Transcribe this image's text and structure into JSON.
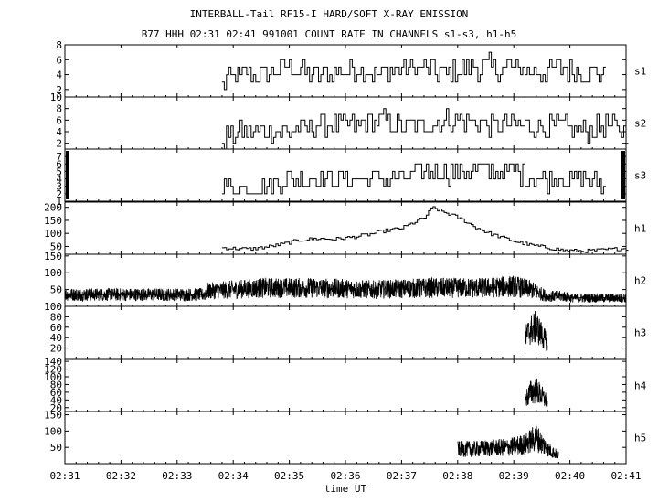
{
  "chart_data": {
    "type": "line",
    "title": "INTERBALL-Tail RF15-I HARD/SOFT X-RAY EMISSION",
    "subtitle": "B77 HHH 02:31 02:41 991001  COUNT RATE IN CHANNELS s1-s3, h1-h5",
    "xlabel": "time UT",
    "x_ticks": [
      "02:31",
      "02:32",
      "02:33",
      "02:34",
      "02:35",
      "02:36",
      "02:37",
      "02:38",
      "02:39",
      "02:40",
      "02:41"
    ],
    "xlim_minutes": [
      0,
      10
    ],
    "panels": [
      {
        "name": "s1",
        "ylim": [
          1,
          8
        ],
        "yticks": [
          2,
          4,
          6,
          8
        ],
        "style": "step",
        "series": [
          {
            "x": [
              2.8,
              3.2,
              3.6,
              4.0,
              4.4,
              4.8,
              5.2,
              5.6,
              6.0,
              6.4,
              6.8,
              7.2,
              7.6,
              8.0,
              8.4,
              8.8,
              9.2,
              9.6
            ],
            "values": [
              3,
              4,
              4,
              5,
              4,
              4,
              5,
              4,
              5,
              5,
              4,
              5,
              5,
              5,
              4,
              5,
              4,
              4
            ]
          }
        ]
      },
      {
        "name": "s2",
        "ylim": [
          1,
          10
        ],
        "yticks": [
          2,
          4,
          6,
          8,
          10
        ],
        "style": "step",
        "series": [
          {
            "x": [
              2.8,
              3.2,
              3.6,
              4.0,
              4.4,
              4.8,
              5.2,
              5.6,
              6.0,
              6.4,
              6.8,
              7.2,
              7.6,
              8.0,
              8.4,
              8.8,
              9.2,
              9.6,
              10.0
            ],
            "values": [
              3,
              4,
              4,
              4,
              5,
              5,
              5,
              6,
              5,
              5,
              6,
              6,
              5,
              5,
              5,
              5,
              4,
              5,
              4
            ]
          }
        ]
      },
      {
        "name": "s3",
        "ylim": [
          1,
          8
        ],
        "yticks": [
          1,
          2,
          3,
          4,
          5,
          6,
          7
        ],
        "style": "step",
        "series": [
          {
            "x": [
              2.8,
              3.2,
              3.6,
              4.0,
              4.4,
              4.8,
              5.2,
              5.6,
              6.0,
              6.4,
              6.8,
              7.2,
              7.6,
              8.0,
              8.4,
              8.8,
              9.2,
              9.6
            ],
            "values": [
              3,
              3,
              3,
              4,
              4,
              4,
              4,
              4,
              4,
              5,
              5,
              5,
              5,
              5,
              4,
              4,
              4,
              3
            ]
          }
        ]
      },
      {
        "name": "h1",
        "ylim": [
          20,
          220
        ],
        "yticks": [
          50,
          100,
          150,
          200
        ],
        "style": "step",
        "series": [
          {
            "x": [
              2.8,
              3.0,
              3.3,
              3.6,
              3.9,
              4.2,
              4.5,
              4.8,
              5.1,
              5.4,
              5.7,
              6.0,
              6.2,
              6.4,
              6.55,
              6.7,
              6.9,
              7.1,
              7.3,
              7.5,
              7.7,
              8.0,
              8.3,
              8.6,
              8.9,
              9.2,
              9.5,
              9.8,
              10.0
            ],
            "values": [
              45,
              42,
              40,
              48,
              60,
              75,
              80,
              78,
              85,
              95,
              110,
              120,
              140,
              160,
              200,
              185,
              170,
              150,
              125,
              105,
              90,
              70,
              55,
              45,
              35,
              32,
              35,
              40,
              42
            ]
          }
        ]
      },
      {
        "name": "h2",
        "ylim": [
          0,
          155
        ],
        "yticks": [
          50,
          100,
          150
        ],
        "style": "noise",
        "baseline": 35,
        "series": [
          {
            "x": [
              0.0,
              2.5,
              2.5,
              3.5,
              4.5,
              5.5,
              6.5,
              7.5,
              8.0,
              8.3,
              8.6,
              8.9,
              9.0,
              10.0
            ],
            "values": [
              35,
              35,
              45,
              55,
              55,
              50,
              55,
              55,
              60,
              50,
              30,
              30,
              25,
              25
            ]
          }
        ]
      },
      {
        "name": "h3",
        "ylim": [
          0,
          100
        ],
        "yticks": [
          20,
          40,
          60,
          80,
          100
        ],
        "style": "noise",
        "series": [
          {
            "x": [
              8.2,
              8.3,
              8.4,
              8.5,
              8.6
            ],
            "values": [
              40,
              55,
              60,
              45,
              30
            ]
          }
        ]
      },
      {
        "name": "h4",
        "ylim": [
          10,
          145
        ],
        "yticks": [
          20,
          40,
          60,
          80,
          100,
          120,
          140
        ],
        "style": "noise",
        "series": [
          {
            "x": [
              8.2,
              8.3,
              8.4,
              8.5,
              8.6
            ],
            "values": [
              40,
              60,
              65,
              50,
              35
            ]
          }
        ]
      },
      {
        "name": "h5",
        "ylim": [
          0,
          160
        ],
        "yticks": [
          50,
          100,
          150
        ],
        "style": "noise",
        "series": [
          {
            "x": [
              7.0,
              7.3,
              7.6,
              7.9,
              8.2,
              8.4,
              8.6,
              8.8
            ],
            "values": [
              45,
              45,
              48,
              50,
              60,
              80,
              45,
              25
            ]
          }
        ]
      }
    ]
  }
}
